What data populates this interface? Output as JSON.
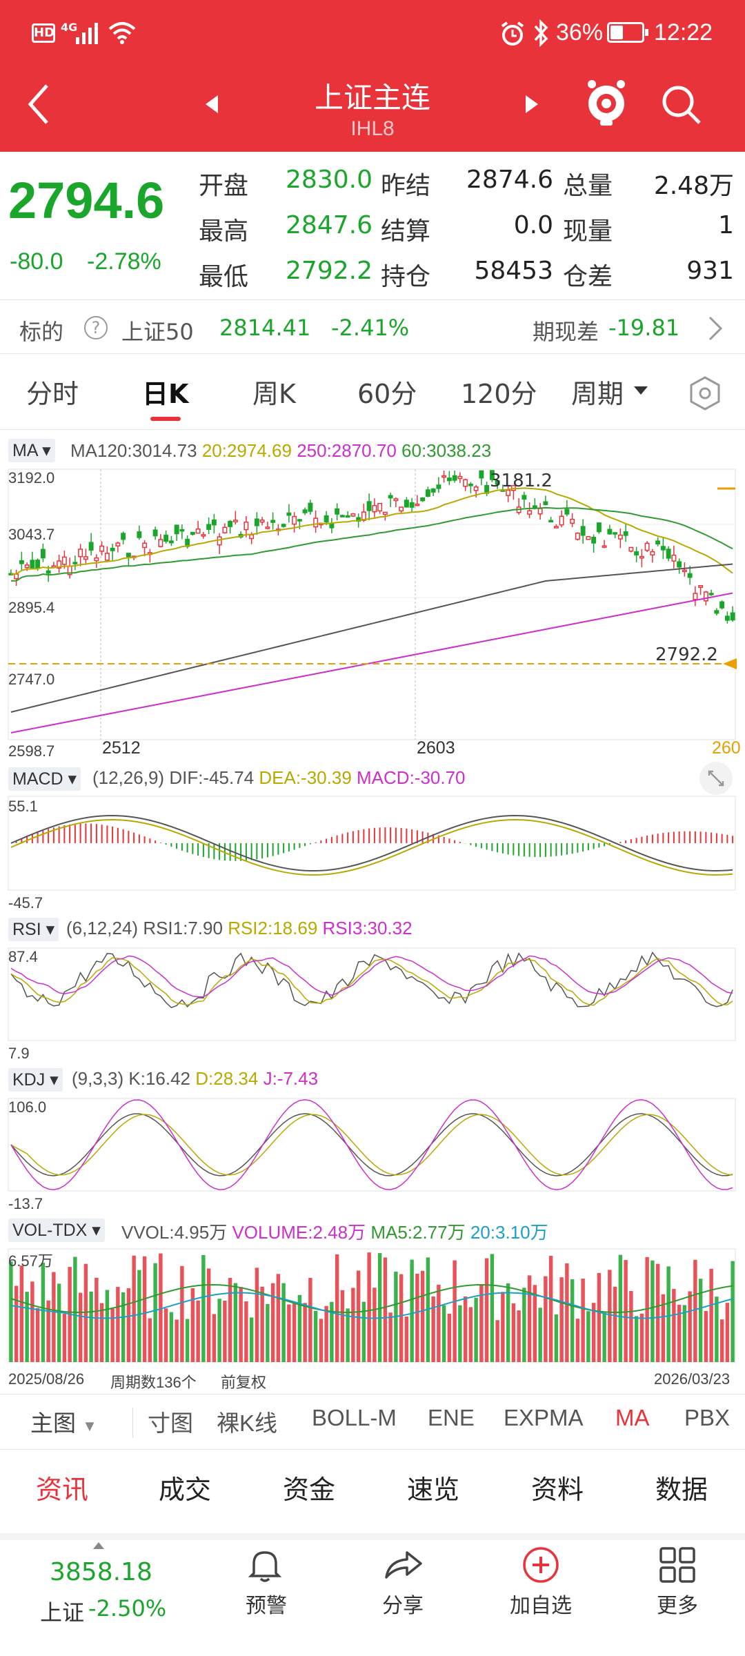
{
  "status_bar": {
    "hd": "HD",
    "net": "4G",
    "battery": "36%",
    "time": "12:22"
  },
  "header": {
    "title": "上证主连",
    "code": "IHL8"
  },
  "quote": {
    "price": "2794.6",
    "change": "-80.0",
    "change_pct": "-2.78%",
    "rows": [
      [
        {
          "label": "开盘",
          "value": "2830.0"
        },
        {
          "label": "昨结",
          "value": "2874.6"
        },
        {
          "label": "总量",
          "value": "2.48万"
        }
      ],
      [
        {
          "label": "最高",
          "value": "2847.6"
        },
        {
          "label": "结算",
          "value": "0.0"
        },
        {
          "label": "现量",
          "value": "1"
        }
      ],
      [
        {
          "label": "最低",
          "value": "2792.2"
        },
        {
          "label": "持仓",
          "value": "58453"
        },
        {
          "label": "仓差",
          "value": "931"
        }
      ]
    ]
  },
  "underlying": {
    "label": "标的",
    "name": "上证50",
    "value": "2814.41",
    "pct": "-2.41%",
    "basis_label": "期现差",
    "basis": "-19.81"
  },
  "tabs": [
    "分时",
    "日K",
    "周K",
    "60分",
    "120分",
    "周期"
  ],
  "chart": {
    "ma_btn": "MA",
    "ma_legend": [
      {
        "text": "MA120:3014.73",
        "color": "#555555"
      },
      {
        "text": "20:2974.69",
        "color": "#b8a800"
      },
      {
        "text": "250:2870.70",
        "color": "#cc2fcc"
      },
      {
        "text": "60:3038.23",
        "color": "#2f9a2f"
      }
    ],
    "y_top": "3192.0",
    "y_2": "3043.7",
    "y_3": "2895.4",
    "y_4": "2747.0",
    "y_bottom": "2598.7",
    "max_label": "3181.2",
    "last_label": "2792.2",
    "x_labels": [
      "2512",
      "2603",
      "260"
    ],
    "macd_btn": "MACD",
    "macd_legend": [
      {
        "text": "(12,26,9)",
        "color": "#555555"
      },
      {
        "text": "DIF:-45.74",
        "color": "#555555"
      },
      {
        "text": "DEA:-30.39",
        "color": "#b8a800"
      },
      {
        "text": "MACD:-30.70",
        "color": "#cc2fcc"
      }
    ],
    "macd_top": "55.1",
    "macd_bottom": "-45.7",
    "rsi_btn": "RSI",
    "rsi_legend": [
      {
        "text": "(6,12,24)",
        "color": "#555555"
      },
      {
        "text": "RSI1:7.90",
        "color": "#555555"
      },
      {
        "text": "RSI2:18.69",
        "color": "#b8a800"
      },
      {
        "text": "RSI3:30.32",
        "color": "#cc2fcc"
      }
    ],
    "rsi_top": "87.4",
    "rsi_bottom": "7.9",
    "kdj_btn": "KDJ",
    "kdj_legend": [
      {
        "text": "(9,3,3)",
        "color": "#555555"
      },
      {
        "text": "K:16.42",
        "color": "#555555"
      },
      {
        "text": "D:28.34",
        "color": "#b8a800"
      },
      {
        "text": "J:-7.43",
        "color": "#cc2fcc"
      }
    ],
    "kdj_top": "106.0",
    "kdj_bottom": "-13.7",
    "vol_btn": "VOL-TDX",
    "vol_legend": [
      {
        "text": "VVOL:4.95万",
        "color": "#555555"
      },
      {
        "text": "VOLUME:2.48万",
        "color": "#cc2fcc"
      },
      {
        "text": "MA5:2.77万",
        "color": "#2f9a2f"
      },
      {
        "text": "20:3.10万",
        "color": "#1aa0c8"
      }
    ],
    "vol_top": "6.57万",
    "footer_start": "2025/08/26",
    "footer_count": "周期数136个",
    "footer_adj": "前复权",
    "footer_end": "2026/03/23"
  },
  "toolbar": {
    "main": "主图",
    "items": [
      "寸图",
      "裸K线",
      "BOLL-M",
      "ENE",
      "EXPMA",
      "MA",
      "PBX"
    ],
    "active": "MA"
  },
  "sections": [
    "资讯",
    "成交",
    "资金",
    "速览",
    "资料",
    "数据"
  ],
  "bottom": {
    "index_value": "3858.18",
    "index_name": "上证",
    "index_pct": "-2.50%",
    "nav": [
      "预警",
      "分享",
      "加自选",
      "更多"
    ]
  },
  "colors": {
    "brand": "#e8333b",
    "down": "#1aa52b",
    "up": "#e8333b"
  }
}
